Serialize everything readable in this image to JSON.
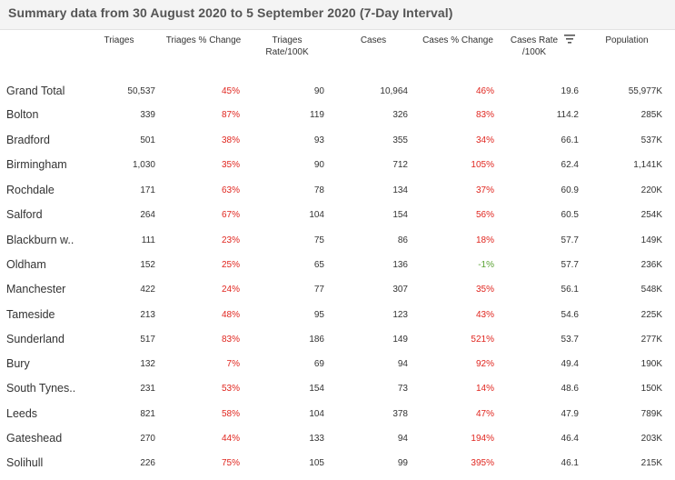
{
  "title": "Summary data from 30 August 2020 to 5 September 2020 (7-Day Interval)",
  "headers": {
    "triages": "Triages",
    "triages_pct": "Triages % Change",
    "triages_rate_1": "Triages",
    "triages_rate_2": "Rate/100K",
    "cases": "Cases",
    "cases_pct": "Cases % Change",
    "cases_rate_1": "Cases Rate",
    "cases_rate_2": "/100K",
    "population": "Population"
  },
  "icons": {
    "sort": "sort-icon"
  },
  "colors": {
    "increase": "#e0261f",
    "decrease": "#5aa233"
  },
  "rows": [
    {
      "name": "Grand Total",
      "triages": "50,537",
      "triages_pct": "45%",
      "triages_rate": "90",
      "cases": "10,964",
      "cases_pct": "46%",
      "cases_rate": "19.6",
      "population": "55,977K"
    },
    {
      "name": "Bolton",
      "triages": "339",
      "triages_pct": "87%",
      "triages_rate": "119",
      "cases": "326",
      "cases_pct": "83%",
      "cases_rate": "114.2",
      "population": "285K"
    },
    {
      "name": "Bradford",
      "triages": "501",
      "triages_pct": "38%",
      "triages_rate": "93",
      "cases": "355",
      "cases_pct": "34%",
      "cases_rate": "66.1",
      "population": "537K"
    },
    {
      "name": "Birmingham",
      "triages": "1,030",
      "triages_pct": "35%",
      "triages_rate": "90",
      "cases": "712",
      "cases_pct": "105%",
      "cases_rate": "62.4",
      "population": "1,141K"
    },
    {
      "name": "Rochdale",
      "triages": "171",
      "triages_pct": "63%",
      "triages_rate": "78",
      "cases": "134",
      "cases_pct": "37%",
      "cases_rate": "60.9",
      "population": "220K"
    },
    {
      "name": "Salford",
      "triages": "264",
      "triages_pct": "67%",
      "triages_rate": "104",
      "cases": "154",
      "cases_pct": "56%",
      "cases_rate": "60.5",
      "population": "254K"
    },
    {
      "name": "Blackburn w..",
      "triages": "111",
      "triages_pct": "23%",
      "triages_rate": "75",
      "cases": "86",
      "cases_pct": "18%",
      "cases_rate": "57.7",
      "population": "149K"
    },
    {
      "name": "Oldham",
      "triages": "152",
      "triages_pct": "25%",
      "triages_rate": "65",
      "cases": "136",
      "cases_pct": "-1%",
      "cases_rate": "57.7",
      "population": "236K"
    },
    {
      "name": "Manchester",
      "triages": "422",
      "triages_pct": "24%",
      "triages_rate": "77",
      "cases": "307",
      "cases_pct": "35%",
      "cases_rate": "56.1",
      "population": "548K"
    },
    {
      "name": "Tameside",
      "triages": "213",
      "triages_pct": "48%",
      "triages_rate": "95",
      "cases": "123",
      "cases_pct": "43%",
      "cases_rate": "54.6",
      "population": "225K"
    },
    {
      "name": "Sunderland",
      "triages": "517",
      "triages_pct": "83%",
      "triages_rate": "186",
      "cases": "149",
      "cases_pct": "521%",
      "cases_rate": "53.7",
      "population": "277K"
    },
    {
      "name": "Bury",
      "triages": "132",
      "triages_pct": "7%",
      "triages_rate": "69",
      "cases": "94",
      "cases_pct": "92%",
      "cases_rate": "49.4",
      "population": "190K"
    },
    {
      "name": "South Tynes..",
      "triages": "231",
      "triages_pct": "53%",
      "triages_rate": "154",
      "cases": "73",
      "cases_pct": "14%",
      "cases_rate": "48.6",
      "population": "150K"
    },
    {
      "name": "Leeds",
      "triages": "821",
      "triages_pct": "58%",
      "triages_rate": "104",
      "cases": "378",
      "cases_pct": "47%",
      "cases_rate": "47.9",
      "population": "789K"
    },
    {
      "name": "Gateshead",
      "triages": "270",
      "triages_pct": "44%",
      "triages_rate": "133",
      "cases": "94",
      "cases_pct": "194%",
      "cases_rate": "46.4",
      "population": "203K"
    },
    {
      "name": "Solihull",
      "triages": "226",
      "triages_pct": "75%",
      "triages_rate": "105",
      "cases": "99",
      "cases_pct": "395%",
      "cases_rate": "46.1",
      "population": "215K"
    }
  ]
}
